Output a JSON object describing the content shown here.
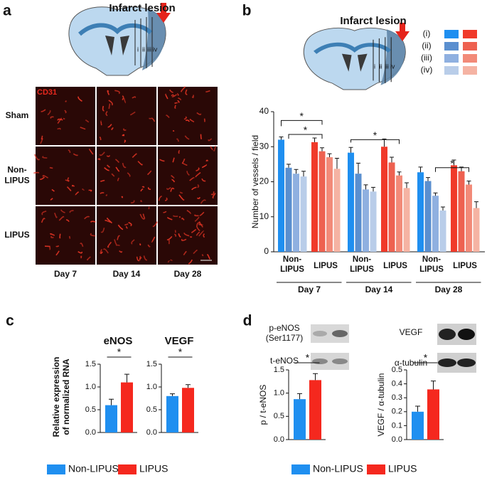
{
  "panel_a": {
    "label": "a",
    "diagram_title": "Infarct lesion",
    "diagram_labels": [
      "i",
      "ii",
      "iii",
      "iv"
    ],
    "stain": "CD31",
    "rows": [
      [
        "Sham"
      ],
      [
        "Non-",
        "LIPUS"
      ],
      [
        "LIPUS"
      ]
    ],
    "columns": [
      "Day 7",
      "Day 14",
      "Day 28"
    ]
  },
  "panel_b": {
    "label": "b",
    "diagram_title": "Infarct lesion",
    "diagram_labels": [
      "i",
      "ii",
      "iii",
      "iv"
    ],
    "legend_labels": [
      "(i)",
      "(ii)",
      "(iii)",
      "(iv)"
    ],
    "chart": {
      "type": "bar",
      "ylabel": "Number of vessels / field",
      "ylim": [
        0,
        40
      ],
      "yticks": [
        0,
        10,
        20,
        30,
        40
      ],
      "colors": [
        [
          "#1f8ff0",
          "#5a8fcf",
          "#8fb0e0",
          "#b9cde9"
        ],
        [
          "#f03a2a",
          "#ee6150",
          "#f28a78",
          "#f5b3a3"
        ]
      ],
      "groups": [
        {
          "label": "Day 7",
          "subgroups": [
            {
              "label": [
                "Non-",
                "LIPUS"
              ],
              "values": [
                32,
                24,
                22.3,
                21.5
              ],
              "errors": [
                0.8,
                1,
                1.2,
                1.5
              ]
            },
            {
              "label": [
                "LIPUS"
              ],
              "values": [
                31.3,
                28.7,
                27,
                23.7
              ],
              "errors": [
                1.2,
                1,
                1,
                3
              ]
            }
          ]
        },
        {
          "label": "Day 14",
          "subgroups": [
            {
              "label": [
                "Non-",
                "LIPUS"
              ],
              "values": [
                28.3,
                22.3,
                17.8,
                17.2
              ],
              "errors": [
                1.5,
                3,
                1.3,
                1.2
              ]
            },
            {
              "label": [
                "LIPUS"
              ],
              "values": [
                30,
                25.5,
                21.8,
                18.2
              ],
              "errors": [
                2.2,
                1.5,
                1,
                1.5
              ]
            }
          ]
        },
        {
          "label": "Day 28",
          "subgroups": [
            {
              "label": [
                "Non-",
                "LIPUS"
              ],
              "values": [
                22.7,
                20.2,
                16,
                11.8
              ],
              "errors": [
                1.5,
                1,
                0.8,
                1
              ]
            },
            {
              "label": [
                "LIPUS"
              ],
              "values": [
                24.7,
                23,
                19.2,
                12.5
              ],
              "errors": [
                1.5,
                1.2,
                1,
                1.8
              ]
            }
          ]
        }
      ],
      "annotations": [
        "*",
        "*",
        "*",
        "*"
      ]
    }
  },
  "panel_c": {
    "label": "c",
    "ylabel": [
      "Relative expression",
      "of normalized RNA"
    ],
    "legend": [
      {
        "name": "Non-LIPUS",
        "color": "#1f8ff0"
      },
      {
        "name": "LIPUS",
        "color": "#f5281e"
      }
    ],
    "charts": [
      {
        "type": "bar",
        "title": "eNOS",
        "ylim": [
          0,
          1.5
        ],
        "yticks": [
          {
            "value": 0,
            "label": "0.0"
          },
          0.5,
          {
            "value": 1,
            "label": "1.0"
          },
          1.5
        ],
        "values": [
          0.6,
          1.1
        ],
        "errors": [
          0.13,
          0.18
        ],
        "annotation": "*"
      },
      {
        "type": "bar",
        "title": "VEGF",
        "ylim": [
          0,
          1.5
        ],
        "yticks": [
          {
            "value": 0,
            "label": "0.0"
          },
          0.5,
          {
            "value": 1,
            "label": "1.0"
          },
          1.5
        ],
        "values": [
          0.8,
          0.98
        ],
        "errors": [
          0.05,
          0.07
        ],
        "annotation": "*"
      }
    ]
  },
  "panel_d": {
    "label": "d",
    "blots": [
      [
        "p-eNOS",
        "(Ser1177)"
      ],
      [
        "t-eNOS"
      ],
      [
        "VEGF"
      ],
      [
        "α-tubulin"
      ]
    ],
    "legend": [
      {
        "name": "Non-LIPUS",
        "color": "#1f8ff0"
      },
      {
        "name": "LIPUS",
        "color": "#f5281e"
      }
    ],
    "charts": [
      {
        "type": "bar",
        "ylabel": "p / t-eNOS",
        "ylim": [
          0,
          1.5
        ],
        "yticks": [
          {
            "value": 0,
            "label": "0.0"
          },
          0.5,
          {
            "value": 1,
            "label": "1.0"
          },
          1.5
        ],
        "values": [
          0.87,
          1.28
        ],
        "errors": [
          0.12,
          0.14
        ],
        "annotation": "*"
      },
      {
        "type": "bar",
        "ylabel": "VEGF / α-tubulin",
        "ylim": [
          0,
          0.5
        ],
        "yticks": [
          {
            "value": 0,
            "label": "0.0"
          },
          0.1,
          0.2,
          0.3,
          0.4,
          0.5
        ],
        "values": [
          0.2,
          0.36
        ],
        "errors": [
          0.04,
          0.06
        ],
        "annotation": "*"
      }
    ]
  }
}
